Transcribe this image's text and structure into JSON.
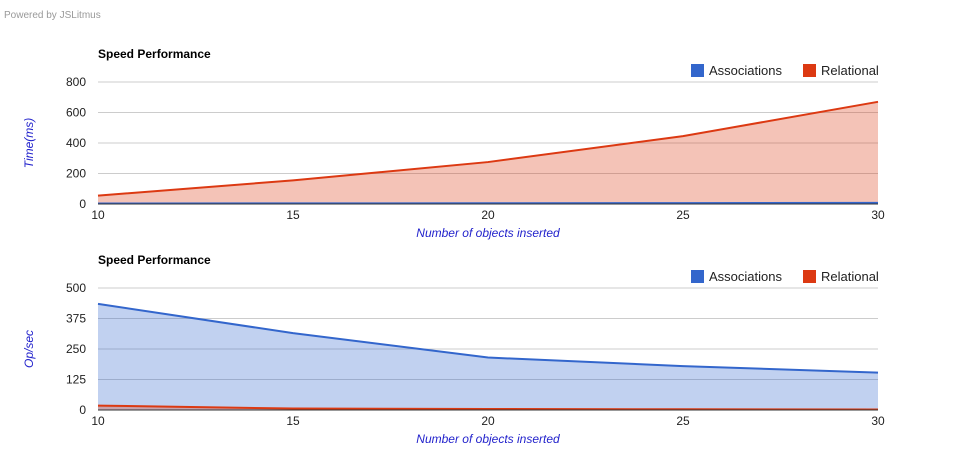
{
  "header": {
    "powered_by": "Powered by JSLitmus"
  },
  "colors": {
    "associations": "#3366cc",
    "relational": "#dc3912",
    "grid": "#cccccc",
    "axis_title": "#2222cc"
  },
  "chart_data": [
    {
      "type": "area",
      "title": "Speed Performance",
      "xlabel": "Number of objects inserted",
      "ylabel": "Time(ms)",
      "x": [
        10,
        15,
        20,
        25,
        30
      ],
      "xticks": [
        "10",
        "15",
        "20",
        "25",
        "30"
      ],
      "yticks": [
        "0",
        "200",
        "400",
        "600",
        "800"
      ],
      "ylim": [
        0,
        800
      ],
      "grid": true,
      "legend": "top-right",
      "series": [
        {
          "name": "Associations",
          "color": "#3366cc",
          "values": [
            3,
            4,
            5,
            6,
            7
          ]
        },
        {
          "name": "Relational",
          "color": "#dc3912",
          "values": [
            55,
            155,
            275,
            445,
            670
          ]
        }
      ]
    },
    {
      "type": "area",
      "title": "Speed Performance",
      "xlabel": "Number of objects inserted",
      "ylabel": "Op/sec",
      "x": [
        10,
        15,
        20,
        25,
        30
      ],
      "xticks": [
        "10",
        "15",
        "20",
        "25",
        "30"
      ],
      "yticks": [
        "0",
        "125",
        "250",
        "375",
        "500"
      ],
      "ylim": [
        0,
        500
      ],
      "grid": true,
      "legend": "top-right",
      "series": [
        {
          "name": "Associations",
          "color": "#3366cc",
          "values": [
            435,
            315,
            215,
            180,
            153
          ]
        },
        {
          "name": "Relational",
          "color": "#dc3912",
          "values": [
            18,
            6,
            4,
            3,
            2
          ]
        }
      ]
    }
  ]
}
